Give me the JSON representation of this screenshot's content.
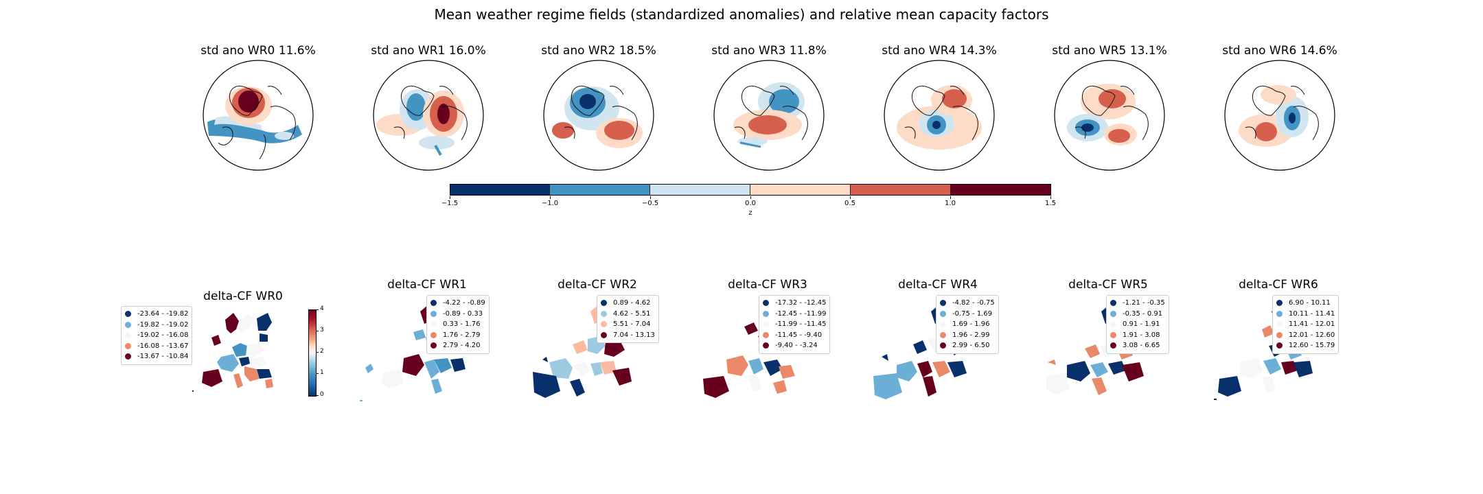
{
  "figure": {
    "suptitle": "Mean weather regime fields (standardized anomalies) and relative mean capacity factors"
  },
  "globes": [
    {
      "title": "std ano WR0 11.6%"
    },
    {
      "title": "std ano WR1 16.0%"
    },
    {
      "title": "std ano WR2 18.5%"
    },
    {
      "title": "std ano WR3 11.8%"
    },
    {
      "title": "std ano WR4 14.3%"
    },
    {
      "title": "std ano WR5 13.1%"
    },
    {
      "title": "std ano WR6 14.6%"
    }
  ],
  "colorbar": {
    "label": "z",
    "ticks": [
      "−1.5",
      "−1.0",
      "−0.5",
      "0.0",
      "0.5",
      "1.0",
      "1.5"
    ],
    "colors": [
      "#08306b",
      "#4292c6",
      "#d1e5f0",
      "#fddbc7",
      "#d6604d",
      "#67001f"
    ]
  },
  "maps": [
    {
      "title": "delta-CF WR0",
      "legend": [
        "-23.64 - -19.82",
        "-19.82 - -19.02",
        "-19.02 - -16.08",
        "-16.08 - -13.67",
        "-13.67 - -10.84"
      ]
    },
    {
      "title": "delta-CF WR1",
      "legend": [
        "-4.22 - -0.89",
        "-0.89 - 0.33",
        "0.33 - 1.76",
        "1.76 - 2.79",
        "2.79 - 4.20"
      ]
    },
    {
      "title": "delta-CF WR2",
      "legend": [
        "0.89 - 4.62",
        "4.62 - 5.51",
        "5.51 - 7.04",
        "7.04 - 13.13"
      ]
    },
    {
      "title": "delta-CF WR3",
      "legend": [
        "-17.32 - -12.45",
        "-12.45 - -11.99",
        "-11.99 - -11.45",
        "-11.45 - -9.40",
        "-9.40 - -3.24"
      ]
    },
    {
      "title": "delta-CF WR4",
      "legend": [
        "-4.82 - -0.75",
        "-0.75 - 1.69",
        "1.69 - 1.96",
        "1.96 - 2.99",
        "2.99 - 6.50"
      ]
    },
    {
      "title": "delta-CF WR5",
      "legend": [
        "-1.21 - -0.35",
        "-0.35 - 0.91",
        "0.91 - 1.91",
        "1.91 - 3.08",
        "3.08 - 6.65"
      ]
    },
    {
      "title": "delta-CF WR6",
      "legend": [
        "6.90 - 10.11",
        "10.11 - 11.41",
        "11.41 - 12.01",
        "12.01 - 12.60",
        "12.60 - 15.79"
      ]
    }
  ],
  "legend_colors": [
    "#08306b",
    "#6baed6",
    "#f7f7f7",
    "#e9896a",
    "#67001f"
  ],
  "legend_colors_4": [
    "#08306b",
    "#9ecae1",
    "#fcbba1",
    "#67001f"
  ],
  "wr0_colorbar": {
    "ticks": [
      "4",
      "3",
      "2",
      "1",
      "0"
    ]
  }
}
